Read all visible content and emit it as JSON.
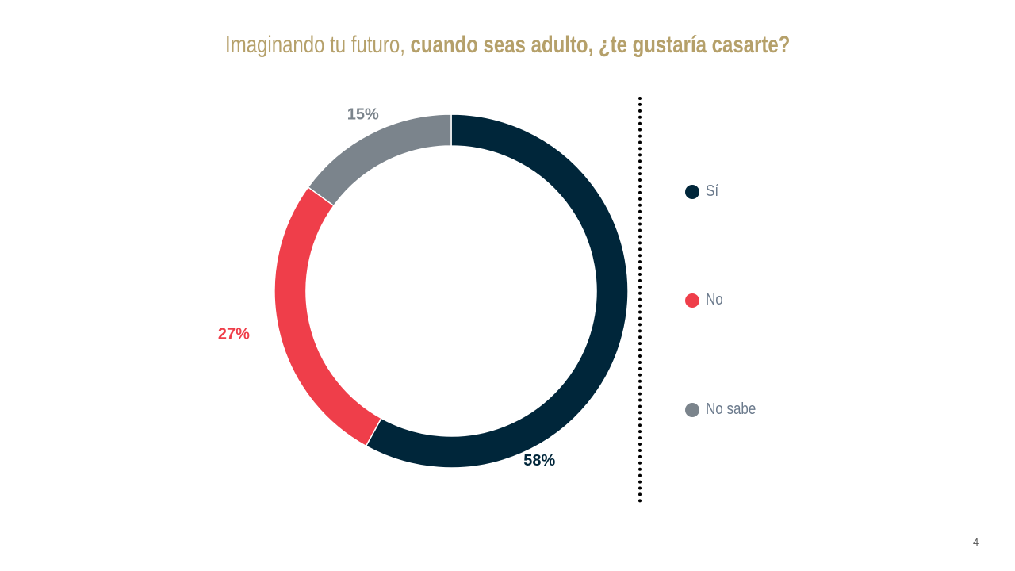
{
  "title": {
    "regular": "Imaginando tu futuro,",
    "bold": "cuando seas adulto, ¿te gustaría casarte?"
  },
  "chart_data": {
    "type": "pie",
    "donut": true,
    "title": "Imaginando tu futuro, cuando seas adulto, ¿te gustaría casarte?",
    "categories": [
      "Sí",
      "No",
      "No sabe"
    ],
    "values": [
      58,
      27,
      15
    ],
    "labels": [
      "58%",
      "27%",
      "15%"
    ],
    "colors": [
      "#00263a",
      "#ef3e4a",
      "#7b848c"
    ],
    "legend_position": "right"
  },
  "legend": [
    {
      "label": "Sí",
      "color": "#00263a"
    },
    {
      "label": "No",
      "color": "#ef3e4a"
    },
    {
      "label": "No sabe",
      "color": "#7b848c"
    }
  ],
  "page_number": "4"
}
